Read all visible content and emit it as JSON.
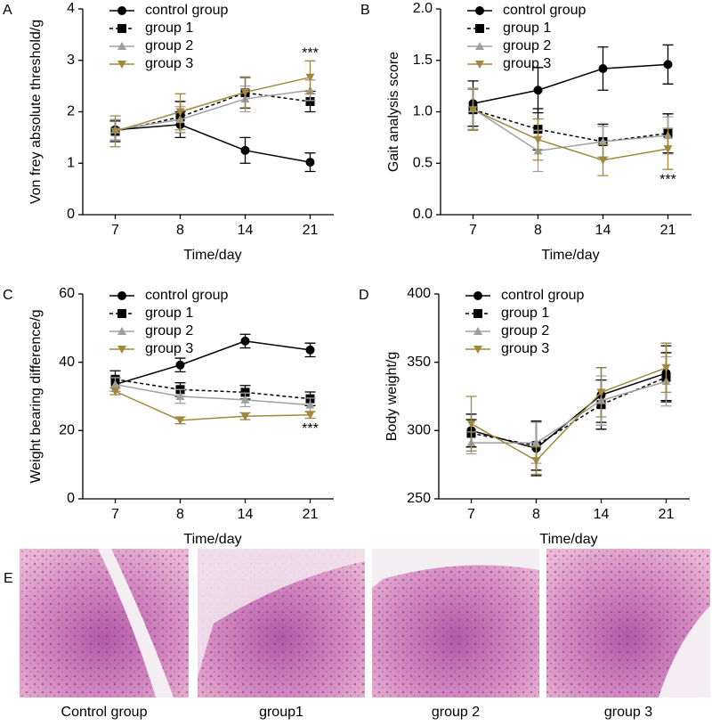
{
  "chart_data": [
    {
      "type": "line",
      "panel": "A",
      "ylabel": "Von frey absolute threshold/g",
      "xlabel": "Time/day",
      "categories": [
        "7",
        "8",
        "14",
        "21"
      ],
      "ylim": [
        0,
        4
      ],
      "yticks": [
        0,
        1,
        2,
        3,
        4
      ],
      "annotation": "***",
      "series": [
        {
          "name": "control group",
          "color": "#000000",
          "marker": "circle",
          "dashed": false,
          "values": [
            1.65,
            1.75,
            1.25,
            1.02
          ],
          "errors": [
            0.2,
            0.25,
            0.25,
            0.18
          ]
        },
        {
          "name": "group 1",
          "color": "#000000",
          "marker": "square",
          "dashed": true,
          "values": [
            1.62,
            1.9,
            2.37,
            2.2
          ],
          "errors": [
            0.2,
            0.3,
            0.3,
            0.2
          ]
        },
        {
          "name": "group 2",
          "color": "#a0a0a0",
          "marker": "triangle-up",
          "dashed": false,
          "values": [
            1.65,
            1.85,
            2.25,
            2.42
          ],
          "errors": [
            0.2,
            0.25,
            0.25,
            0.2
          ]
        },
        {
          "name": "group 3",
          "color": "#a08840",
          "marker": "triangle-down",
          "dashed": false,
          "values": [
            1.62,
            2.0,
            2.38,
            2.67
          ],
          "errors": [
            0.3,
            0.35,
            0.3,
            0.32
          ]
        }
      ]
    },
    {
      "type": "line",
      "panel": "B",
      "ylabel": "Gait analysis score",
      "xlabel": "Time/day",
      "categories": [
        "7",
        "8",
        "14",
        "21"
      ],
      "ylim": [
        0,
        2
      ],
      "yticks": [
        {
          "value": 0,
          "label": "0.0"
        },
        0.5,
        {
          "value": 1,
          "label": "1.0"
        },
        1.5,
        {
          "value": 2,
          "label": "2.0"
        }
      ],
      "annotation": "***",
      "series": [
        {
          "name": "control group",
          "color": "#000000",
          "marker": "circle",
          "dashed": false,
          "values": [
            1.08,
            1.21,
            1.42,
            1.46
          ],
          "errors": [
            0.22,
            0.22,
            0.21,
            0.19
          ]
        },
        {
          "name": "group 1",
          "color": "#000000",
          "marker": "square",
          "dashed": true,
          "values": [
            1.02,
            0.83,
            0.71,
            0.79
          ],
          "errors": [
            0.2,
            0.2,
            0.17,
            0.19
          ]
        },
        {
          "name": "group 2",
          "color": "#a0a0a0",
          "marker": "triangle-up",
          "dashed": false,
          "values": [
            1.03,
            0.62,
            0.71,
            0.77
          ],
          "errors": [
            0.2,
            0.2,
            0.15,
            0.18
          ]
        },
        {
          "name": "group 3",
          "color": "#a08840",
          "marker": "triangle-down",
          "dashed": false,
          "values": [
            1.02,
            0.73,
            0.53,
            0.64
          ],
          "errors": [
            0.2,
            0.2,
            0.15,
            0.2
          ]
        }
      ]
    },
    {
      "type": "line",
      "panel": "C",
      "ylabel": "Weight bearing difference/g",
      "xlabel": "Time/day",
      "categories": [
        "7",
        "8",
        "14",
        "21"
      ],
      "ylim": [
        0,
        60
      ],
      "yticks": [
        0,
        20,
        40,
        60
      ],
      "annotation": "***",
      "series": [
        {
          "name": "control group",
          "color": "#000000",
          "marker": "circle",
          "dashed": false,
          "values": [
            33.5,
            39.2,
            46.2,
            43.6
          ],
          "errors": [
            2,
            2,
            2,
            2
          ]
        },
        {
          "name": "group 1",
          "color": "#000000",
          "marker": "square",
          "dashed": true,
          "values": [
            35,
            32,
            31.2,
            29.3
          ],
          "errors": [
            2.5,
            2,
            2,
            2
          ]
        },
        {
          "name": "group 2",
          "color": "#a0a0a0",
          "marker": "triangle-up",
          "dashed": false,
          "values": [
            33.5,
            30,
            29,
            27.5
          ],
          "errors": [
            2,
            2,
            2,
            2
          ]
        },
        {
          "name": "group 3",
          "color": "#a08840",
          "marker": "triangle-down",
          "dashed": false,
          "values": [
            31.5,
            23,
            24.2,
            24.6
          ],
          "errors": [
            1,
            1,
            1,
            1
          ]
        }
      ]
    },
    {
      "type": "line",
      "panel": "D",
      "ylabel": "Body weight/g",
      "xlabel": "Time/day",
      "categories": [
        "7",
        "8",
        "14",
        "21"
      ],
      "ylim": [
        250,
        400
      ],
      "yticks": [
        250,
        300,
        350,
        400
      ],
      "series": [
        {
          "name": "control group",
          "color": "#000000",
          "marker": "circle",
          "dashed": false,
          "values": [
            300,
            287,
            326,
            342
          ],
          "errors": [
            12,
            20,
            20,
            20
          ]
        },
        {
          "name": "group 1",
          "color": "#000000",
          "marker": "square",
          "dashed": true,
          "values": [
            298,
            289,
            319,
            339
          ],
          "errors": [
            10,
            18,
            18,
            18
          ]
        },
        {
          "name": "group 2",
          "color": "#a0a0a0",
          "marker": "triangle-up",
          "dashed": false,
          "values": [
            291,
            291,
            322,
            336
          ],
          "errors": [
            8,
            15,
            18,
            18
          ]
        },
        {
          "name": "group 3",
          "color": "#a08840",
          "marker": "triangle-down",
          "dashed": false,
          "values": [
            305,
            278,
            328,
            346
          ],
          "errors": [
            20,
            10,
            18,
            18
          ]
        }
      ]
    }
  ],
  "histology": {
    "panel": "E",
    "captions": [
      "Control group",
      "group1",
      "group 2",
      "group 3"
    ]
  }
}
